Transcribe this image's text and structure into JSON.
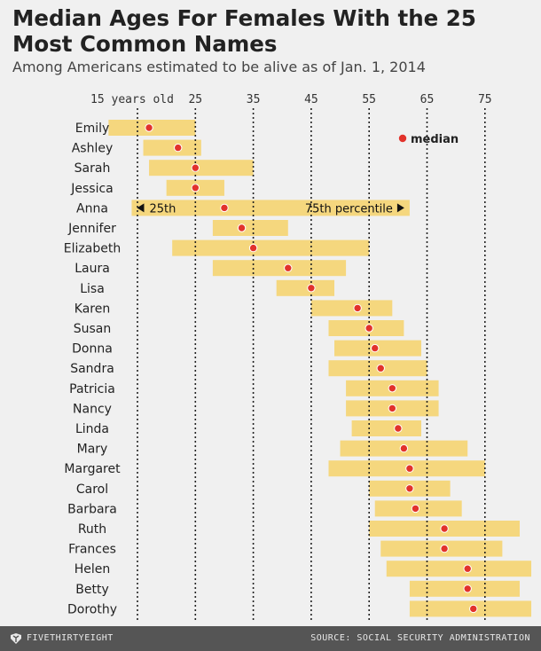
{
  "title": "Median Ages For Females With the 25 Most Common Names",
  "subtitle": "Among Americans estimated to be alive as of Jan. 1, 2014",
  "footer": {
    "brand": "FIVETHIRTYEIGHT",
    "source": "SOURCE: SOCIAL SECURITY ADMINISTRATION"
  },
  "colors": {
    "bar": "#f5d77e",
    "median": "#e2322b",
    "grid": "#222222",
    "text": "#222222"
  },
  "chart_data": {
    "type": "range-dot",
    "axis": {
      "ticks": [
        {
          "value": 15,
          "label": "15 years old"
        },
        {
          "value": 25,
          "label": "25"
        },
        {
          "value": 35,
          "label": "35"
        },
        {
          "value": 45,
          "label": "45"
        },
        {
          "value": 55,
          "label": "55"
        },
        {
          "value": 65,
          "label": "65"
        },
        {
          "value": 75,
          "label": "75"
        }
      ],
      "grid": "dotted vertical lines at each tick"
    },
    "legend": {
      "median": "median"
    },
    "annotations": {
      "left": "25th",
      "right": "75th percentile",
      "row": "Anna"
    },
    "rows": [
      {
        "name": "Emily",
        "p25": 10,
        "median": 17,
        "p75": 25
      },
      {
        "name": "Ashley",
        "p25": 16,
        "median": 22,
        "p75": 26
      },
      {
        "name": "Sarah",
        "p25": 17,
        "median": 25,
        "p75": 35
      },
      {
        "name": "Jessica",
        "p25": 20,
        "median": 25,
        "p75": 30
      },
      {
        "name": "Anna",
        "p25": 14,
        "median": 30,
        "p75": 62
      },
      {
        "name": "Jennifer",
        "p25": 28,
        "median": 33,
        "p75": 41
      },
      {
        "name": "Elizabeth",
        "p25": 21,
        "median": 35,
        "p75": 55
      },
      {
        "name": "Laura",
        "p25": 28,
        "median": 41,
        "p75": 51
      },
      {
        "name": "Lisa",
        "p25": 39,
        "median": 45,
        "p75": 49
      },
      {
        "name": "Karen",
        "p25": 45,
        "median": 53,
        "p75": 59
      },
      {
        "name": "Susan",
        "p25": 48,
        "median": 55,
        "p75": 61
      },
      {
        "name": "Donna",
        "p25": 49,
        "median": 56,
        "p75": 64
      },
      {
        "name": "Sandra",
        "p25": 48,
        "median": 57,
        "p75": 65
      },
      {
        "name": "Patricia",
        "p25": 51,
        "median": 59,
        "p75": 67
      },
      {
        "name": "Nancy",
        "p25": 51,
        "median": 59,
        "p75": 67
      },
      {
        "name": "Linda",
        "p25": 52,
        "median": 60,
        "p75": 64
      },
      {
        "name": "Mary",
        "p25": 50,
        "median": 61,
        "p75": 72
      },
      {
        "name": "Margaret",
        "p25": 48,
        "median": 62,
        "p75": 75
      },
      {
        "name": "Carol",
        "p25": 55,
        "median": 62,
        "p75": 69
      },
      {
        "name": "Barbara",
        "p25": 56,
        "median": 63,
        "p75": 71
      },
      {
        "name": "Ruth",
        "p25": 55,
        "median": 68,
        "p75": 81
      },
      {
        "name": "Frances",
        "p25": 57,
        "median": 68,
        "p75": 78
      },
      {
        "name": "Helen",
        "p25": 58,
        "median": 72,
        "p75": 83
      },
      {
        "name": "Betty",
        "p25": 62,
        "median": 72,
        "p75": 81
      },
      {
        "name": "Dorothy",
        "p25": 62,
        "median": 73,
        "p75": 83
      }
    ]
  }
}
